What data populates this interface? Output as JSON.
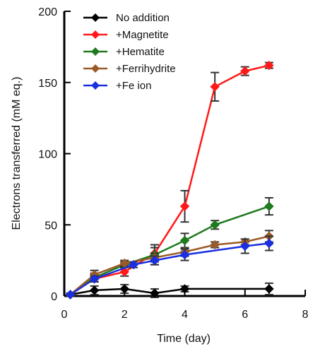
{
  "chart_data": {
    "type": "line",
    "xlabel": "Time (day)",
    "ylabel": "Electrons transferred (mM eq.)",
    "xlim": [
      0,
      8
    ],
    "ylim": [
      0,
      200
    ],
    "x_ticks": [
      "0",
      "2",
      "4",
      "6",
      "8"
    ],
    "y_ticks": [
      "0",
      "50",
      "100",
      "150",
      "200"
    ],
    "grid": false,
    "legend_position": "top-left",
    "series": [
      {
        "name": "No addition",
        "color": "#000000",
        "points": [
          {
            "x": 0.2,
            "y": 1,
            "err": 1
          },
          {
            "x": 1.0,
            "y": 4,
            "err": 3
          },
          {
            "x": 2.0,
            "y": 5,
            "err": 3
          },
          {
            "x": 3.0,
            "y": 2,
            "err": 3
          },
          {
            "x": 4.0,
            "y": 5,
            "err": 2
          },
          {
            "x": 6.8,
            "y": 5,
            "err": 4
          }
        ]
      },
      {
        "name": "+Magnetite",
        "color": "#ff1a1a",
        "points": [
          {
            "x": 0.2,
            "y": 1,
            "err": 1
          },
          {
            "x": 1.0,
            "y": 12,
            "err": 2
          },
          {
            "x": 2.0,
            "y": 17,
            "err": 3
          },
          {
            "x": 3.0,
            "y": 30,
            "err": 4
          },
          {
            "x": 4.0,
            "y": 63,
            "err": 11
          },
          {
            "x": 5.0,
            "y": 147,
            "err": 10
          },
          {
            "x": 6.0,
            "y": 158,
            "err": 3
          },
          {
            "x": 6.8,
            "y": 162,
            "err": 2
          }
        ]
      },
      {
        "name": "+Hematite",
        "color": "#1e7a1e",
        "points": [
          {
            "x": 0.2,
            "y": 1,
            "err": 1
          },
          {
            "x": 1.0,
            "y": 13,
            "err": 3
          },
          {
            "x": 2.0,
            "y": 22,
            "err": 2
          },
          {
            "x": 3.0,
            "y": 29,
            "err": 7
          },
          {
            "x": 4.0,
            "y": 39,
            "err": 5
          },
          {
            "x": 5.0,
            "y": 50,
            "err": 3
          },
          {
            "x": 6.8,
            "y": 63,
            "err": 6
          }
        ]
      },
      {
        "name": "+Ferrihydrite",
        "color": "#9a5b28",
        "points": [
          {
            "x": 0.2,
            "y": 1,
            "err": 1
          },
          {
            "x": 1.0,
            "y": 15,
            "err": 3
          },
          {
            "x": 2.0,
            "y": 23,
            "err": 2
          },
          {
            "x": 3.0,
            "y": 27,
            "err": 3
          },
          {
            "x": 4.0,
            "y": 31,
            "err": 3
          },
          {
            "x": 5.0,
            "y": 36,
            "err": 2
          },
          {
            "x": 6.0,
            "y": 38,
            "err": 2
          },
          {
            "x": 6.8,
            "y": 42,
            "err": 4
          }
        ]
      },
      {
        "name": "+Fe ion",
        "color": "#1a2fe0",
        "points": [
          {
            "x": 0.2,
            "y": 1,
            "err": 1
          },
          {
            "x": 1.0,
            "y": 12,
            "err": 2
          },
          {
            "x": 2.3,
            "y": 22,
            "err": 2
          },
          {
            "x": 3.0,
            "y": 25,
            "err": 3
          },
          {
            "x": 4.0,
            "y": 29,
            "err": 4
          },
          {
            "x": 6.0,
            "y": 35,
            "err": 5
          },
          {
            "x": 6.8,
            "y": 37,
            "err": 5
          }
        ]
      }
    ]
  }
}
